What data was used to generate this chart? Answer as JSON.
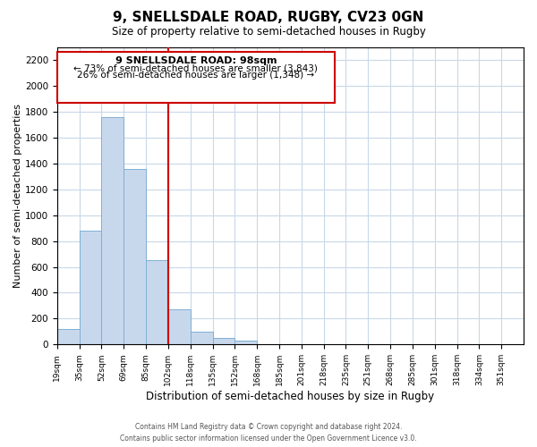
{
  "title": "9, SNELLSDALE ROAD, RUGBY, CV23 0GN",
  "subtitle": "Size of property relative to semi-detached houses in Rugby",
  "xlabel": "Distribution of semi-detached houses by size in Rugby",
  "ylabel": "Number of semi-detached properties",
  "bar_color": "#c8d8ec",
  "bar_edge_color": "#7fafd4",
  "property_line_color": "#cc0000",
  "annotation_box_edge_color": "#cc0000",
  "categories": [
    "19sqm",
    "35sqm",
    "52sqm",
    "69sqm",
    "85sqm",
    "102sqm",
    "118sqm",
    "135sqm",
    "152sqm",
    "168sqm",
    "185sqm",
    "201sqm",
    "218sqm",
    "235sqm",
    "251sqm",
    "268sqm",
    "285sqm",
    "301sqm",
    "318sqm",
    "334sqm",
    "351sqm"
  ],
  "bin_left_edges": [
    0,
    1,
    2,
    3,
    4,
    5,
    6,
    7,
    8,
    9,
    10,
    11,
    12,
    13,
    14,
    15,
    16,
    17,
    18,
    19,
    20
  ],
  "values": [
    120,
    880,
    1760,
    1355,
    650,
    270,
    100,
    50,
    30,
    0,
    0,
    0,
    0,
    0,
    0,
    0,
    0,
    0,
    0,
    0,
    0
  ],
  "property_bin_index": 5,
  "ylim": [
    0,
    2300
  ],
  "yticks": [
    0,
    200,
    400,
    600,
    800,
    1000,
    1200,
    1400,
    1600,
    1800,
    2000,
    2200
  ],
  "annotation_title": "9 SNELLSDALE ROAD: 98sqm",
  "annotation_line1": "← 73% of semi-detached houses are smaller (3,843)",
  "annotation_line2": "26% of semi-detached houses are larger (1,348) →",
  "footer_line1": "Contains HM Land Registry data © Crown copyright and database right 2024.",
  "footer_line2": "Contains public sector information licensed under the Open Government Licence v3.0.",
  "background_color": "#ffffff",
  "grid_color": "#c8d8e8",
  "num_bins": 21
}
